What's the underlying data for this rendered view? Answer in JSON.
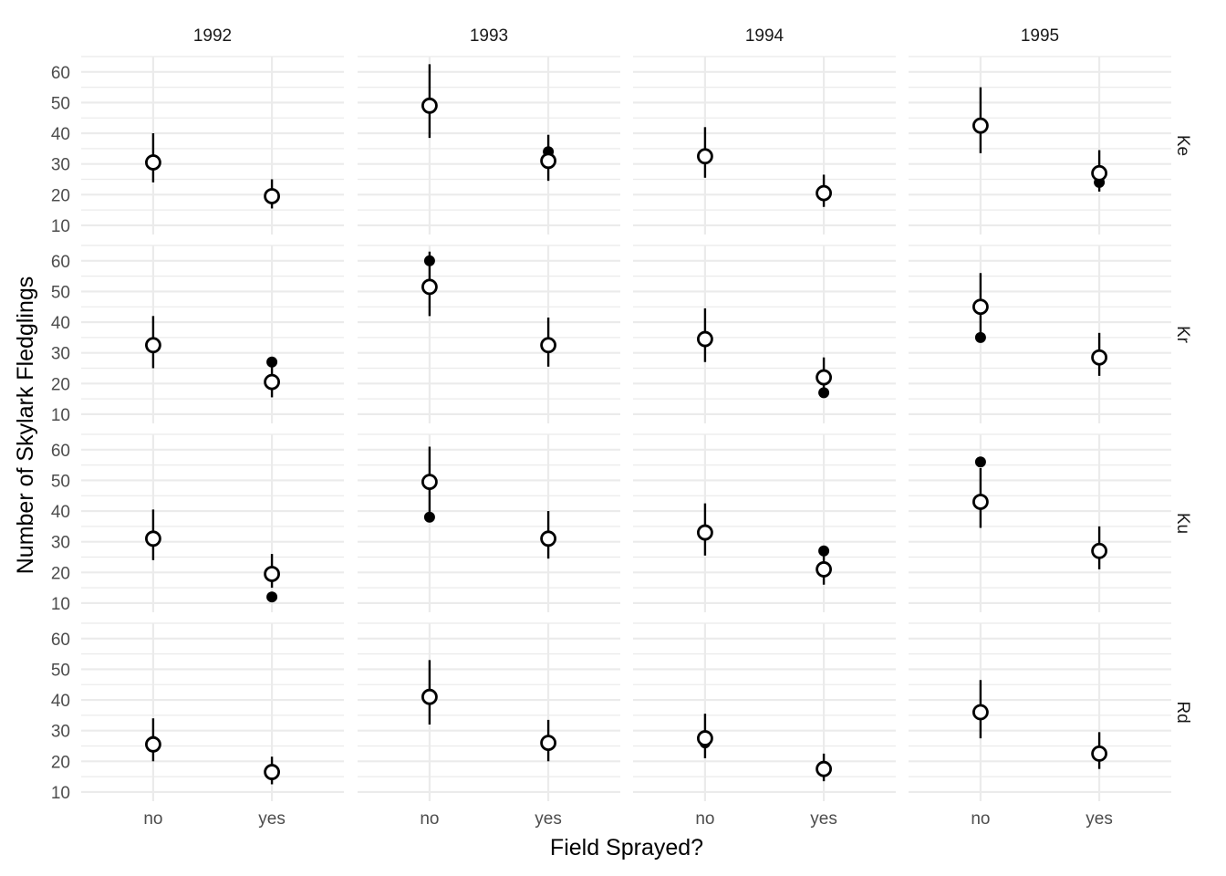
{
  "chart_data": {
    "type": "scatter",
    "title": "",
    "xlabel": "Field Sprayed?",
    "ylabel": "Number of Skylark Fledglings",
    "x_categories": [
      "no",
      "yes"
    ],
    "y_ticks": [
      10,
      20,
      30,
      40,
      50,
      60
    ],
    "ylim": [
      7,
      65
    ],
    "grid": true,
    "colors": {
      "points": "#000000",
      "grid": "#ebebeb",
      "background": "#ffffff"
    },
    "facet_cols": [
      "1992",
      "1993",
      "1994",
      "1995"
    ],
    "facet_rows": [
      "Ke",
      "Kr",
      "Ku",
      "Rd"
    ],
    "marks": {
      "observed": "filled points",
      "predicted": "open circles with vertical interval lines"
    },
    "panels": [
      {
        "row": "Ke",
        "col": "1992",
        "points": [
          {
            "x": "no",
            "observed": 31,
            "predicted": 30.5,
            "lower": 24,
            "upper": 40
          },
          {
            "x": "yes",
            "observed": 19.5,
            "predicted": 19.5,
            "lower": 15.5,
            "upper": 25
          }
        ]
      },
      {
        "row": "Ke",
        "col": "1993",
        "points": [
          {
            "x": "no",
            "observed": 49,
            "predicted": 49,
            "lower": 38.5,
            "upper": 62.5
          },
          {
            "x": "yes",
            "observed": 34,
            "predicted": 31,
            "lower": 24.5,
            "upper": 39.5
          }
        ]
      },
      {
        "row": "Ke",
        "col": "1994",
        "points": [
          {
            "x": "no",
            "observed": 33,
            "predicted": 32.5,
            "lower": 25.5,
            "upper": 42
          },
          {
            "x": "yes",
            "observed": 20.5,
            "predicted": 20.5,
            "lower": 16,
            "upper": 26.5
          }
        ]
      },
      {
        "row": "Ke",
        "col": "1995",
        "points": [
          {
            "x": "no",
            "observed": 43,
            "predicted": 42.5,
            "lower": 33.5,
            "upper": 55
          },
          {
            "x": "yes",
            "observed": 24,
            "predicted": 27,
            "lower": 21,
            "upper": 34.5
          }
        ]
      },
      {
        "row": "Kr",
        "col": "1992",
        "points": [
          {
            "x": "no",
            "observed": 32.5,
            "predicted": 32.5,
            "lower": 25,
            "upper": 42
          },
          {
            "x": "yes",
            "observed": 27,
            "predicted": 20.5,
            "lower": 15.5,
            "upper": 26
          }
        ]
      },
      {
        "row": "Kr",
        "col": "1993",
        "points": [
          {
            "x": "no",
            "observed": 60,
            "predicted": 51.5,
            "lower": 42,
            "upper": 63
          },
          {
            "x": "yes",
            "observed": 32.5,
            "predicted": 32.5,
            "lower": 25.5,
            "upper": 41.5
          }
        ]
      },
      {
        "row": "Kr",
        "col": "1994",
        "points": [
          {
            "x": "no",
            "observed": 34.5,
            "predicted": 34.5,
            "lower": 27,
            "upper": 44.5
          },
          {
            "x": "yes",
            "observed": 17,
            "predicted": 22,
            "lower": 17,
            "upper": 28.5
          }
        ]
      },
      {
        "row": "Kr",
        "col": "1995",
        "points": [
          {
            "x": "no",
            "observed": 35,
            "predicted": 45,
            "lower": 35.5,
            "upper": 56
          },
          {
            "x": "yes",
            "observed": 28.5,
            "predicted": 28.5,
            "lower": 22.5,
            "upper": 36.5
          }
        ]
      },
      {
        "row": "Ku",
        "col": "1992",
        "points": [
          {
            "x": "no",
            "observed": 31,
            "predicted": 31,
            "lower": 24,
            "upper": 40.5
          },
          {
            "x": "yes",
            "observed": 12,
            "predicted": 19.5,
            "lower": 15,
            "upper": 26
          }
        ]
      },
      {
        "row": "Ku",
        "col": "1993",
        "points": [
          {
            "x": "no",
            "observed": 38,
            "predicted": 49.5,
            "lower": 38.5,
            "upper": 61
          },
          {
            "x": "yes",
            "observed": 31,
            "predicted": 31,
            "lower": 24.5,
            "upper": 40
          }
        ]
      },
      {
        "row": "Ku",
        "col": "1994",
        "points": [
          {
            "x": "no",
            "observed": 33,
            "predicted": 33,
            "lower": 25.5,
            "upper": 42.5
          },
          {
            "x": "yes",
            "observed": 27,
            "predicted": 21,
            "lower": 16,
            "upper": 27
          }
        ]
      },
      {
        "row": "Ku",
        "col": "1995",
        "points": [
          {
            "x": "no",
            "observed": 56,
            "predicted": 43,
            "lower": 34.5,
            "upper": 54
          },
          {
            "x": "yes",
            "observed": 27,
            "predicted": 27,
            "lower": 21,
            "upper": 35
          }
        ]
      },
      {
        "row": "Rd",
        "col": "1992",
        "points": [
          {
            "x": "no",
            "observed": 26.5,
            "predicted": 25.5,
            "lower": 20,
            "upper": 34
          },
          {
            "x": "yes",
            "observed": 16.5,
            "predicted": 16.5,
            "lower": 12.5,
            "upper": 21.5
          }
        ]
      },
      {
        "row": "Rd",
        "col": "1993",
        "points": [
          {
            "x": "no",
            "observed": 41,
            "predicted": 41,
            "lower": 32,
            "upper": 53
          },
          {
            "x": "yes",
            "observed": 26,
            "predicted": 26,
            "lower": 20,
            "upper": 33.5
          }
        ]
      },
      {
        "row": "Rd",
        "col": "1994",
        "points": [
          {
            "x": "no",
            "observed": 26,
            "predicted": 27.5,
            "lower": 21,
            "upper": 35.5
          }
        ],
        "extra": [
          {
            "x": "yes",
            "observed": 17.5,
            "predicted": 17.5,
            "lower": 13.5,
            "upper": 22.5
          }
        ]
      },
      {
        "row": "Rd",
        "col": "1995",
        "points": [
          {
            "x": "no",
            "observed": 36,
            "predicted": 36,
            "lower": 27.5,
            "upper": 46.5
          },
          {
            "x": "yes",
            "observed": 23,
            "predicted": 22.5,
            "lower": 17.5,
            "upper": 29.5
          }
        ]
      }
    ]
  }
}
